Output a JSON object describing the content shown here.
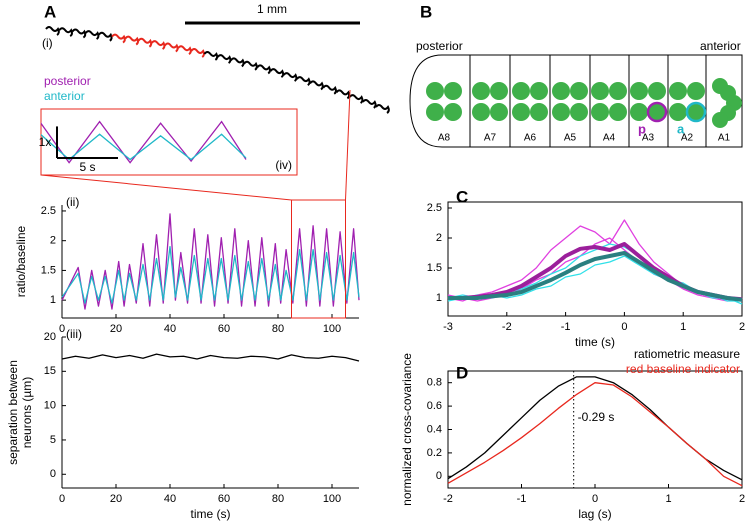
{
  "panels": {
    "letters": [
      "A",
      "B",
      "C",
      "D"
    ],
    "scale_bar": "1 mm",
    "trail_label": "(i)"
  },
  "diagram": {
    "left_label": "posterior",
    "right_label": "anterior",
    "segments": [
      "A8",
      "A7",
      "A6",
      "A5",
      "A4",
      "A3",
      "A2",
      "A1"
    ],
    "markers": [
      "p",
      "a"
    ]
  },
  "chart_data": [
    {
      "type": "line",
      "label": "(ii)",
      "ylabel": "ratio/baseline",
      "x": [
        0,
        6,
        8.5,
        11,
        13.5,
        16,
        18.5,
        21,
        23,
        25,
        27.5,
        30,
        32.5,
        35,
        37.5,
        40,
        42,
        44,
        46.5,
        49,
        51.5,
        54,
        56.5,
        59,
        61.5,
        64,
        66.5,
        69,
        71.5,
        74,
        76.5,
        79,
        81,
        83,
        85.5,
        88,
        90.5,
        93,
        95.5,
        98,
        100.5,
        103,
        105.5,
        108,
        110
      ],
      "series": [
        {
          "name": "posterior",
          "color": "#a020b0",
          "values": [
            1.0,
            1.55,
            0.85,
            1.5,
            0.9,
            1.5,
            0.85,
            1.65,
            0.9,
            1.6,
            0.95,
            1.95,
            0.9,
            2.1,
            0.95,
            2.45,
            1.0,
            1.8,
            0.95,
            2.2,
            0.95,
            2.1,
            0.9,
            2.05,
            0.95,
            2.2,
            0.9,
            2.0,
            0.9,
            2.05,
            0.9,
            1.95,
            0.95,
            1.85,
            0.95,
            2.2,
            0.9,
            2.25,
            0.9,
            2.2,
            0.9,
            2.15,
            0.95,
            2.2,
            1.0
          ]
        },
        {
          "name": "anterior",
          "color": "#20b8c8",
          "values": [
            1.05,
            1.45,
            0.95,
            1.4,
            1.0,
            1.4,
            0.95,
            1.5,
            1.0,
            1.45,
            1.0,
            1.6,
            1.0,
            1.7,
            1.0,
            1.9,
            1.05,
            1.55,
            1.0,
            1.75,
            1.0,
            1.7,
            1.0,
            1.7,
            1.0,
            1.75,
            1.0,
            1.65,
            1.0,
            1.7,
            1.0,
            1.6,
            1.0,
            1.5,
            1.0,
            1.85,
            1.0,
            1.85,
            1.0,
            1.8,
            1.0,
            1.75,
            1.0,
            1.8,
            1.05
          ]
        }
      ],
      "xlim": [
        0,
        110
      ],
      "xticks": [
        0,
        20,
        40,
        60,
        80,
        100
      ],
      "ylim": [
        0.7,
        2.6
      ],
      "yticks": [
        1,
        1.5,
        2,
        2.5
      ],
      "highlight_x": [
        85,
        105
      ],
      "highlight_color": "#e8281e",
      "inset": {
        "label": "(iv)",
        "scalebar_y": {
          "value": 1,
          "label": "1x"
        },
        "scalebar_x": {
          "value": 5,
          "label": "5 s"
        }
      }
    },
    {
      "type": "line",
      "label": "(iii)",
      "ylabel": [
        "separation between",
        "neurons (µm)"
      ],
      "xlabel": "time (s)",
      "x": [
        0,
        5,
        10,
        15,
        20,
        25,
        30,
        35,
        40,
        45,
        50,
        55,
        60,
        65,
        70,
        75,
        80,
        85,
        90,
        95,
        100,
        105,
        110
      ],
      "series": [
        {
          "color": "#000000",
          "values": [
            16.8,
            17.2,
            16.9,
            17.4,
            17.0,
            17.3,
            16.9,
            17.5,
            17.1,
            17.2,
            16.8,
            17.3,
            17.0,
            16.9,
            17.2,
            17.1,
            16.8,
            17.4,
            17.0,
            16.9,
            17.2,
            17.0,
            16.5
          ]
        }
      ],
      "xlim": [
        0,
        110
      ],
      "xticks": [
        0,
        20,
        40,
        60,
        80,
        100
      ],
      "ylim": [
        -2,
        20
      ],
      "yticks": [
        0,
        5,
        10,
        15,
        20
      ]
    },
    {
      "type": "line",
      "xlabel": "time (s)",
      "box": true,
      "x": [
        -3,
        -2.75,
        -2.5,
        -2.25,
        -2,
        -1.75,
        -1.5,
        -1.25,
        -1,
        -0.75,
        -0.5,
        -0.25,
        0,
        0.25,
        0.5,
        0.75,
        1,
        1.25,
        1.5,
        1.75,
        2
      ],
      "series": [
        {
          "color": "#e040e0",
          "values": [
            1.0,
            0.95,
            1.05,
            1.1,
            1.2,
            1.3,
            1.5,
            1.8,
            2.0,
            2.2,
            2.1,
            1.9,
            2.3,
            1.9,
            1.6,
            1.4,
            1.2,
            1.1,
            1.0,
            1.0,
            0.95
          ]
        },
        {
          "color": "#e040e0",
          "values": [
            1.05,
            1.0,
            0.95,
            1.0,
            1.05,
            1.15,
            1.3,
            1.4,
            1.6,
            1.7,
            1.9,
            2.0,
            1.8,
            1.6,
            1.4,
            1.3,
            1.15,
            1.05,
            1.0,
            0.95,
            1.0
          ]
        },
        {
          "color": "#30e0e8",
          "values": [
            0.95,
            1.0,
            1.05,
            1.0,
            1.1,
            1.15,
            1.25,
            1.4,
            1.5,
            1.7,
            1.8,
            1.9,
            1.85,
            1.7,
            1.5,
            1.35,
            1.2,
            1.1,
            1.0,
            1.0,
            0.9
          ]
        },
        {
          "color": "#30e0e8",
          "values": [
            1.0,
            1.05,
            1.0,
            1.05,
            1.0,
            1.05,
            1.15,
            1.2,
            1.35,
            1.4,
            1.55,
            1.6,
            1.7,
            1.55,
            1.4,
            1.3,
            1.25,
            1.1,
            1.05,
            0.95,
            0.95
          ]
        },
        {
          "color": "#9b1f9b",
          "bold": true,
          "values": [
            1.0,
            1.0,
            1.02,
            1.05,
            1.1,
            1.2,
            1.35,
            1.5,
            1.7,
            1.82,
            1.85,
            1.8,
            1.9,
            1.7,
            1.5,
            1.35,
            1.2,
            1.1,
            1.05,
            1.0,
            0.98
          ]
        },
        {
          "color": "#2a7f80",
          "bold": true,
          "values": [
            1.0,
            1.0,
            1.0,
            1.03,
            1.05,
            1.1,
            1.2,
            1.3,
            1.42,
            1.55,
            1.65,
            1.7,
            1.75,
            1.6,
            1.45,
            1.3,
            1.2,
            1.1,
            1.05,
            1.0,
            0.97
          ]
        }
      ],
      "xlim": [
        -3,
        2
      ],
      "xticks": [
        -3,
        -2,
        -1,
        0,
        1,
        2
      ],
      "ylim": [
        0.7,
        2.6
      ],
      "yticks": [
        1,
        1.5,
        2,
        2.5
      ]
    },
    {
      "type": "line",
      "xlabel": "lag (s)",
      "ylabel": "normalized cross-covariance",
      "box": true,
      "x": [
        -2,
        -1.75,
        -1.5,
        -1.25,
        -1,
        -0.75,
        -0.5,
        -0.25,
        0,
        0.25,
        0.5,
        0.75,
        1,
        1.25,
        1.5,
        1.75,
        2
      ],
      "series": [
        {
          "name": "ratiometric measure",
          "color": "#000000",
          "values": [
            -0.02,
            0.08,
            0.2,
            0.35,
            0.5,
            0.65,
            0.77,
            0.85,
            0.85,
            0.8,
            0.7,
            0.57,
            0.42,
            0.28,
            0.15,
            0.05,
            -0.03
          ]
        },
        {
          "name": "red baseline indicator",
          "color": "#e8281e",
          "values": [
            -0.06,
            0.03,
            0.12,
            0.22,
            0.33,
            0.45,
            0.58,
            0.7,
            0.8,
            0.78,
            0.68,
            0.55,
            0.42,
            0.28,
            0.15,
            0.0,
            -0.08
          ]
        }
      ],
      "xlim": [
        -2,
        2
      ],
      "xticks": [
        -2,
        -1,
        0,
        1,
        2
      ],
      "ylim": [
        -0.1,
        0.9
      ],
      "yticks": [
        0,
        0.2,
        0.4,
        0.6,
        0.8
      ],
      "vline": {
        "value": -0.29,
        "label": "-0.29 s"
      }
    }
  ]
}
